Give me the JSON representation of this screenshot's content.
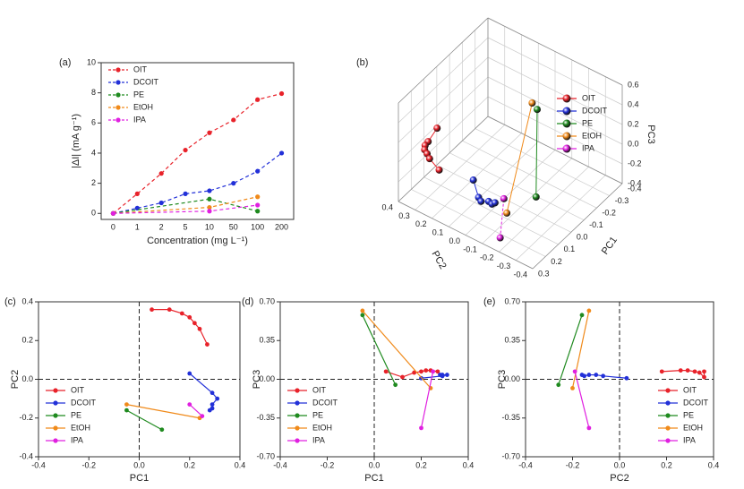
{
  "chart_data": [
    {
      "type": "line",
      "label": "(a)",
      "xlabel": "Concentration (mg L⁻¹)",
      "ylabel": "|ΔI| (mA g⁻¹)",
      "categories": [
        "0",
        "1",
        "2",
        "5",
        "10",
        "50",
        "100",
        "200"
      ],
      "ylim": [
        -0.4,
        10
      ],
      "yticks": [
        0,
        2,
        4,
        6,
        8,
        10
      ],
      "line_style": "dashed",
      "legend": "top-left",
      "series": [
        {
          "name": "OIT",
          "color": "#e8222a",
          "values": [
            0,
            1.3,
            2.65,
            4.2,
            5.35,
            6.2,
            7.55,
            7.95
          ]
        },
        {
          "name": "DCOIT",
          "color": "#2230d8",
          "values": [
            0,
            0.35,
            0.7,
            1.3,
            1.5,
            2.0,
            2.8,
            4.0
          ]
        },
        {
          "name": "PE",
          "color": "#1f8a1f",
          "x": [
            "0",
            "10",
            "100"
          ],
          "values": [
            0,
            0.95,
            0.15
          ]
        },
        {
          "name": "EtOH",
          "color": "#f08a1a",
          "x": [
            "0",
            "10",
            "100"
          ],
          "values": [
            0,
            0.4,
            1.1
          ]
        },
        {
          "name": "IPA",
          "color": "#e020e0",
          "x": [
            "0",
            "10",
            "100"
          ],
          "values": [
            0,
            0.15,
            0.55
          ]
        }
      ]
    },
    {
      "type": "scatter3d",
      "label": "(b)",
      "xlabel": "PC1",
      "ylabel": "PC2",
      "zlabel": "PC3",
      "xlim": [
        -0.4,
        0.3
      ],
      "ylim": [
        -0.4,
        0.4
      ],
      "zlim": [
        -0.4,
        0.6
      ],
      "xticks": [
        -0.4,
        -0.3,
        -0.2,
        -0.1,
        {
          "value": 0,
          "label": "0.0"
        },
        0.1,
        0.2,
        0.3
      ],
      "yticks": [
        -0.4,
        -0.3,
        -0.2,
        -0.1,
        {
          "value": 0,
          "label": "0.0"
        },
        0.1,
        0.2,
        0.3,
        0.4
      ],
      "zticks": [
        -0.4,
        -0.2,
        {
          "value": 0,
          "label": "0.0"
        },
        0.2,
        0.4,
        0.6
      ],
      "legend": "top-right",
      "series": [
        {
          "name": "OIT",
          "color": "#e8222a",
          "x": [
            0.05,
            0.12,
            0.17,
            0.2,
            0.22,
            0.24,
            0.27
          ],
          "y": [
            0.36,
            0.36,
            0.34,
            0.32,
            0.29,
            0.26,
            0.18
          ],
          "z": [
            0.07,
            0.02,
            0.06,
            0.07,
            0.08,
            0.08,
            0.07
          ]
        },
        {
          "name": "DCOIT",
          "color": "#2230d8",
          "x": [
            0.2,
            0.29,
            0.31,
            0.29,
            0.29,
            0.28
          ],
          "y": [
            0.03,
            -0.07,
            -0.1,
            -0.13,
            -0.15,
            -0.16
          ],
          "z": [
            0.01,
            0.03,
            0.04,
            0.04,
            0.03,
            0.04
          ]
        },
        {
          "name": "PE",
          "color": "#1f8a1f",
          "x": [
            -0.05,
            0.09
          ],
          "y": [
            -0.16,
            -0.26
          ],
          "z": [
            0.58,
            -0.05
          ]
        },
        {
          "name": "EtOH",
          "color": "#f08a1a",
          "x": [
            -0.05,
            0.24
          ],
          "y": [
            -0.13,
            -0.2
          ],
          "z": [
            0.62,
            -0.08
          ]
        },
        {
          "name": "IPA",
          "color": "#e020e0",
          "x": [
            0.2,
            0.25
          ],
          "y": [
            -0.13,
            -0.19
          ],
          "z": [
            -0.44,
            0.07
          ]
        }
      ]
    },
    {
      "type": "scatter",
      "label": "(c)",
      "xlabel": "PC1",
      "ylabel": "PC2",
      "xlim": [
        -0.4,
        0.4
      ],
      "ylim": [
        -0.4,
        0.4
      ],
      "xticks": [
        -0.4,
        -0.2,
        {
          "value": 0,
          "label": "0.0"
        },
        0.2,
        0.4
      ],
      "yticks": [
        -0.4,
        -0.2,
        {
          "value": 0,
          "label": "0.0"
        },
        0.2,
        0.4
      ],
      "zero_lines": true,
      "legend": "bottom-left",
      "series": [
        {
          "name": "OIT",
          "color": "#e8222a",
          "x": [
            0.05,
            0.12,
            0.17,
            0.2,
            0.22,
            0.24,
            0.27
          ],
          "y": [
            0.36,
            0.36,
            0.34,
            0.32,
            0.29,
            0.26,
            0.18
          ]
        },
        {
          "name": "DCOIT",
          "color": "#2230d8",
          "x": [
            0.2,
            0.29,
            0.31,
            0.29,
            0.29,
            0.28
          ],
          "y": [
            0.03,
            -0.07,
            -0.1,
            -0.13,
            -0.15,
            -0.16
          ]
        },
        {
          "name": "PE",
          "color": "#1f8a1f",
          "x": [
            -0.05,
            0.09
          ],
          "y": [
            -0.16,
            -0.26
          ]
        },
        {
          "name": "EtOH",
          "color": "#f08a1a",
          "x": [
            -0.05,
            0.24
          ],
          "y": [
            -0.13,
            -0.2
          ]
        },
        {
          "name": "IPA",
          "color": "#e020e0",
          "x": [
            0.2,
            0.25
          ],
          "y": [
            -0.13,
            -0.19
          ]
        }
      ]
    },
    {
      "type": "scatter",
      "label": "(d)",
      "xlabel": "PC1",
      "ylabel": "PC3",
      "xlim": [
        -0.4,
        0.4
      ],
      "ylim": [
        -0.7,
        0.7
      ],
      "xticks": [
        -0.4,
        -0.2,
        {
          "value": 0,
          "label": "0.0"
        },
        0.2,
        0.4
      ],
      "yticks": [
        {
          "value": -0.7,
          "label": "-0.70"
        },
        {
          "value": -0.35,
          "label": "-0.35"
        },
        {
          "value": 0,
          "label": "0.00"
        },
        {
          "value": 0.35,
          "label": "0.35"
        },
        {
          "value": 0.7,
          "label": "0.70"
        }
      ],
      "zero_lines": true,
      "legend": "bottom-left",
      "series": [
        {
          "name": "OIT",
          "color": "#e8222a",
          "x": [
            0.05,
            0.12,
            0.17,
            0.2,
            0.22,
            0.24,
            0.27
          ],
          "y": [
            0.07,
            0.02,
            0.06,
            0.07,
            0.08,
            0.08,
            0.07
          ]
        },
        {
          "name": "DCOIT",
          "color": "#2230d8",
          "x": [
            0.2,
            0.29,
            0.31,
            0.29,
            0.29,
            0.28
          ],
          "y": [
            0.01,
            0.03,
            0.04,
            0.04,
            0.03,
            0.04
          ]
        },
        {
          "name": "PE",
          "color": "#1f8a1f",
          "x": [
            -0.05,
            0.09
          ],
          "y": [
            0.58,
            -0.05
          ]
        },
        {
          "name": "EtOH",
          "color": "#f08a1a",
          "x": [
            -0.05,
            0.24
          ],
          "y": [
            0.62,
            -0.08
          ]
        },
        {
          "name": "IPA",
          "color": "#e020e0",
          "x": [
            0.2,
            0.25
          ],
          "y": [
            -0.44,
            0.07
          ]
        }
      ]
    },
    {
      "type": "scatter",
      "label": "(e)",
      "xlabel": "PC2",
      "ylabel": "PC3",
      "xlim": [
        -0.4,
        0.4
      ],
      "ylim": [
        -0.7,
        0.7
      ],
      "xticks": [
        -0.4,
        -0.2,
        {
          "value": 0,
          "label": "0.0"
        },
        0.2,
        0.4
      ],
      "yticks": [
        {
          "value": -0.7,
          "label": "-0.70"
        },
        {
          "value": -0.35,
          "label": "-0.35"
        },
        {
          "value": 0,
          "label": "0.00"
        },
        {
          "value": 0.35,
          "label": "0.35"
        },
        {
          "value": 0.7,
          "label": "0.70"
        }
      ],
      "zero_lines": true,
      "legend": "bottom-right",
      "series": [
        {
          "name": "OIT",
          "color": "#e8222a",
          "x": [
            0.36,
            0.36,
            0.34,
            0.32,
            0.29,
            0.26,
            0.18
          ],
          "y": [
            0.07,
            0.02,
            0.06,
            0.07,
            0.08,
            0.08,
            0.07
          ]
        },
        {
          "name": "DCOIT",
          "color": "#2230d8",
          "x": [
            0.03,
            -0.07,
            -0.1,
            -0.13,
            -0.15,
            -0.16
          ],
          "y": [
            0.01,
            0.03,
            0.04,
            0.04,
            0.03,
            0.04
          ]
        },
        {
          "name": "PE",
          "color": "#1f8a1f",
          "x": [
            -0.16,
            -0.26
          ],
          "y": [
            0.58,
            -0.05
          ]
        },
        {
          "name": "EtOH",
          "color": "#f08a1a",
          "x": [
            -0.13,
            -0.2
          ],
          "y": [
            0.62,
            -0.08
          ]
        },
        {
          "name": "IPA",
          "color": "#e020e0",
          "x": [
            -0.13,
            -0.19
          ],
          "y": [
            -0.44,
            0.07
          ]
        }
      ]
    }
  ]
}
